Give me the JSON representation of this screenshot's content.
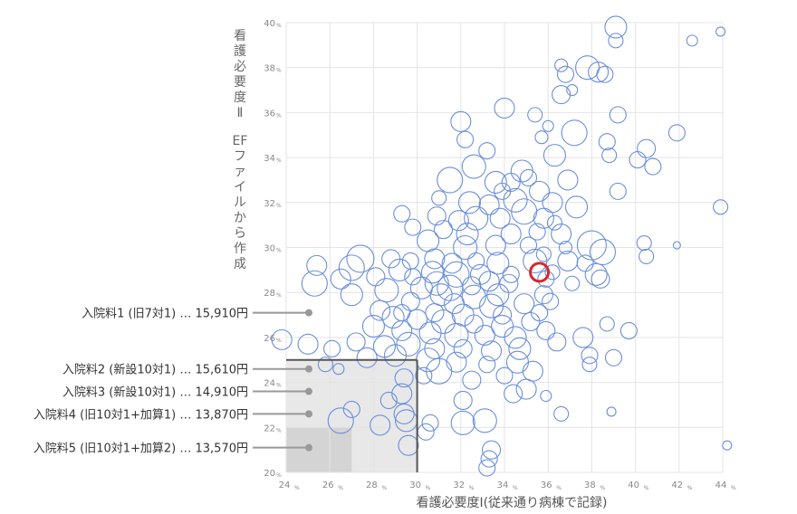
{
  "chart_data": {
    "type": "scatter",
    "subtype": "bubble",
    "xlabel": "看護必要度Ⅰ(従来通り病棟で記録)",
    "ylabel_line1": "看護必要度Ⅱ",
    "ylabel_line2": "EFファイルから作成",
    "xlim": [
      24,
      44
    ],
    "ylim": [
      20,
      40
    ],
    "x_ticks": [
      {
        "v": 24,
        "t": "24"
      },
      {
        "v": 26,
        "t": "26"
      },
      {
        "v": 28,
        "t": "28"
      },
      {
        "v": 30,
        "t": "30"
      },
      {
        "v": 32,
        "t": "32"
      },
      {
        "v": 34,
        "t": "34"
      },
      {
        "v": 36,
        "t": "36"
      },
      {
        "v": 38,
        "t": "38"
      },
      {
        "v": 40,
        "t": "40"
      },
      {
        "v": 42,
        "t": "42"
      },
      {
        "v": 44,
        "t": "44"
      }
    ],
    "y_ticks": [
      {
        "v": 20,
        "t": "20"
      },
      {
        "v": 22,
        "t": "22"
      },
      {
        "v": 24,
        "t": "24"
      },
      {
        "v": 26,
        "t": "26"
      },
      {
        "v": 28,
        "t": "28"
      },
      {
        "v": 30,
        "t": "30"
      },
      {
        "v": 32,
        "t": "32"
      },
      {
        "v": 34,
        "t": "34"
      },
      {
        "v": 36,
        "t": "36"
      },
      {
        "v": 38,
        "t": "38"
      },
      {
        "v": 40,
        "t": "40"
      }
    ],
    "tick_unit": "%",
    "grid": true,
    "colors": {
      "bubble": "#6a8fdb",
      "highlight": "#d9262a",
      "grid": "#e4e4e4",
      "box_line": "#555555",
      "label": "#333333",
      "marker": "#999999",
      "shade_light": "#e8e8e8",
      "shade_dark": "#d4d4d4"
    },
    "shaded_regions": [
      {
        "x": [
          24,
          30
        ],
        "y": [
          20,
          25
        ]
      },
      {
        "x": [
          24,
          27
        ],
        "y": [
          20,
          22
        ]
      }
    ],
    "reference_lines": [
      {
        "label": "入院料1 (旧7対1) … 15,910円",
        "y": 27.1
      },
      {
        "label": "入院料2 (新設10対1) … 15,610円",
        "y": 24.6
      },
      {
        "label": "入院料3 (新設10対1) … 14,910円",
        "y": 23.6
      },
      {
        "label": "入院料4 (旧10対1+加算1) … 13,870円",
        "y": 22.6
      },
      {
        "label": "入院料5 (旧10対1+加算2) … 13,570円",
        "y": 21.1
      }
    ],
    "highlight": {
      "x": 35.6,
      "y": 28.9,
      "size": 10
    },
    "bubbles": [
      [
        39.1,
        39.8,
        12
      ],
      [
        39.1,
        39.2,
        8
      ],
      [
        42.6,
        39.2,
        6
      ],
      [
        43.9,
        39.6,
        5
      ],
      [
        36.6,
        38.1,
        7
      ],
      [
        37.8,
        38.0,
        13
      ],
      [
        38.3,
        37.8,
        11
      ],
      [
        38.6,
        37.7,
        9
      ],
      [
        36.8,
        37.7,
        9
      ],
      [
        36.6,
        36.8,
        10
      ],
      [
        37.1,
        37.0,
        6
      ],
      [
        34.0,
        36.2,
        11
      ],
      [
        35.4,
        35.9,
        8
      ],
      [
        36.0,
        35.4,
        6
      ],
      [
        39.2,
        35.9,
        9
      ],
      [
        32.0,
        35.6,
        11
      ],
      [
        37.2,
        35.1,
        14
      ],
      [
        32.2,
        34.8,
        9
      ],
      [
        38.7,
        34.7,
        9
      ],
      [
        41.9,
        35.1,
        9
      ],
      [
        35.7,
        34.9,
        7
      ],
      [
        33.2,
        34.3,
        9
      ],
      [
        36.3,
        34.1,
        12
      ],
      [
        38.8,
        34.1,
        8
      ],
      [
        40.5,
        34.4,
        10
      ],
      [
        40.1,
        33.9,
        9
      ],
      [
        40.8,
        33.6,
        9
      ],
      [
        32.6,
        33.6,
        13
      ],
      [
        31.5,
        33.0,
        14
      ],
      [
        34.8,
        33.4,
        12
      ],
      [
        35.1,
        33.1,
        9
      ],
      [
        36.9,
        33.0,
        11
      ],
      [
        34.3,
        32.9,
        10
      ],
      [
        33.6,
        32.9,
        12
      ],
      [
        33.9,
        32.5,
        9
      ],
      [
        35.6,
        32.5,
        11
      ],
      [
        32.4,
        32.0,
        12
      ],
      [
        31.0,
        32.2,
        8
      ],
      [
        33.3,
        31.9,
        11
      ],
      [
        34.5,
        32.1,
        13
      ],
      [
        36.2,
        32.0,
        11
      ],
      [
        37.3,
        31.8,
        12
      ],
      [
        39.2,
        32.5,
        9
      ],
      [
        43.9,
        31.8,
        8
      ],
      [
        29.3,
        31.5,
        9
      ],
      [
        30.9,
        31.4,
        10
      ],
      [
        31.9,
        31.2,
        11
      ],
      [
        32.7,
        31.3,
        13
      ],
      [
        33.8,
        31.3,
        11
      ],
      [
        34.9,
        31.6,
        14
      ],
      [
        35.8,
        31.3,
        11
      ],
      [
        36.3,
        31.1,
        8
      ],
      [
        29.8,
        30.9,
        9
      ],
      [
        31.2,
        30.8,
        10
      ],
      [
        32.3,
        30.6,
        12
      ],
      [
        34.3,
        30.6,
        11
      ],
      [
        35.5,
        30.7,
        9
      ],
      [
        36.6,
        30.6,
        11
      ],
      [
        38.0,
        30.1,
        16
      ],
      [
        40.4,
        30.2,
        8
      ],
      [
        41.9,
        30.1,
        4
      ],
      [
        30.5,
        30.3,
        12
      ],
      [
        32.2,
        30.0,
        13
      ],
      [
        33.6,
        30.1,
        11
      ],
      [
        35.1,
        30.1,
        9
      ],
      [
        35.8,
        29.7,
        8
      ],
      [
        36.8,
        30.0,
        7
      ],
      [
        38.5,
        29.8,
        14
      ],
      [
        40.5,
        29.6,
        8
      ],
      [
        27.4,
        29.5,
        15
      ],
      [
        28.8,
        29.5,
        10
      ],
      [
        29.7,
        29.4,
        9
      ],
      [
        30.8,
        29.5,
        11
      ],
      [
        31.6,
        29.3,
        11
      ],
      [
        32.7,
        29.4,
        9
      ],
      [
        33.7,
        29.3,
        12
      ],
      [
        35.4,
        29.4,
        13
      ],
      [
        36.9,
        29.4,
        11
      ],
      [
        37.7,
        29.3,
        9
      ],
      [
        25.4,
        29.2,
        11
      ],
      [
        27.0,
        29.1,
        14
      ],
      [
        29.2,
        29.0,
        12
      ],
      [
        30.7,
        28.9,
        12
      ],
      [
        31.8,
        28.8,
        14
      ],
      [
        32.9,
        28.8,
        11
      ],
      [
        34.3,
        28.8,
        9
      ],
      [
        36.2,
        28.9,
        8
      ],
      [
        38.2,
        28.8,
        12
      ],
      [
        28.1,
        28.7,
        10
      ],
      [
        29.8,
        28.7,
        9
      ],
      [
        30.9,
        28.4,
        13
      ],
      [
        31.5,
        28.2,
        14
      ],
      [
        32.5,
        28.3,
        10
      ],
      [
        33.3,
        28.5,
        11
      ],
      [
        34.2,
        28.4,
        10
      ],
      [
        35.9,
        28.6,
        9
      ],
      [
        37.1,
        28.4,
        8
      ],
      [
        38.4,
        28.6,
        10
      ],
      [
        25.3,
        28.4,
        14
      ],
      [
        26.5,
        28.6,
        11
      ],
      [
        28.6,
        28.1,
        13
      ],
      [
        30.2,
        28.2,
        12
      ],
      [
        31.1,
        27.9,
        12
      ],
      [
        32.6,
        27.8,
        13
      ],
      [
        33.7,
        27.9,
        12
      ],
      [
        35.8,
        27.9,
        10
      ],
      [
        27.0,
        27.9,
        12
      ],
      [
        29.7,
        27.6,
        10
      ],
      [
        31.7,
        27.5,
        11
      ],
      [
        33.4,
        27.4,
        13
      ],
      [
        34.9,
        27.5,
        11
      ],
      [
        36.1,
        27.6,
        9
      ],
      [
        28.3,
        27.2,
        11
      ],
      [
        29.3,
        27.1,
        9
      ],
      [
        30.8,
        27.1,
        10
      ],
      [
        32.1,
        27.0,
        12
      ],
      [
        33.9,
        27.0,
        10
      ],
      [
        35.6,
        27.1,
        9
      ],
      [
        28.9,
        26.9,
        12
      ],
      [
        30.0,
        26.8,
        11
      ],
      [
        31.2,
        26.7,
        13
      ],
      [
        32.6,
        26.6,
        10
      ],
      [
        33.9,
        26.5,
        12
      ],
      [
        35.2,
        26.7,
        10
      ],
      [
        38.7,
        26.6,
        8
      ],
      [
        39.7,
        26.3,
        9
      ],
      [
        28.0,
        26.5,
        12
      ],
      [
        29.3,
        26.3,
        11
      ],
      [
        30.6,
        26.2,
        12
      ],
      [
        31.8,
        26.1,
        13
      ],
      [
        33.1,
        26.1,
        11
      ],
      [
        34.5,
        26.0,
        12
      ],
      [
        35.9,
        26.3,
        10
      ],
      [
        37.6,
        26.0,
        11
      ],
      [
        27.2,
        25.8,
        10
      ],
      [
        28.5,
        25.6,
        12
      ],
      [
        29.6,
        25.7,
        13
      ],
      [
        30.8,
        25.5,
        11
      ],
      [
        32.1,
        25.5,
        10
      ],
      [
        33.4,
        25.4,
        11
      ],
      [
        34.7,
        25.5,
        12
      ],
      [
        36.4,
        25.8,
        10
      ],
      [
        25.0,
        25.7,
        11
      ],
      [
        26.1,
        25.5,
        9
      ],
      [
        27.7,
        25.1,
        11
      ],
      [
        29.0,
        25.2,
        12
      ],
      [
        30.5,
        25.0,
        13
      ],
      [
        31.8,
        24.9,
        11
      ],
      [
        33.2,
        24.8,
        9
      ],
      [
        34.6,
        24.9,
        12
      ],
      [
        37.9,
        25.2,
        9
      ],
      [
        39.0,
        25.1,
        9
      ],
      [
        23.8,
        25.9,
        11
      ],
      [
        25.8,
        24.8,
        8
      ],
      [
        26.4,
        24.6,
        6
      ],
      [
        31.0,
        24.5,
        14
      ],
      [
        32.5,
        24.1,
        10
      ],
      [
        34.0,
        24.3,
        9
      ],
      [
        35.3,
        24.5,
        11
      ],
      [
        37.9,
        24.8,
        8
      ],
      [
        29.4,
        24.2,
        10
      ],
      [
        30.3,
        24.3,
        9
      ],
      [
        35.0,
        23.7,
        11
      ],
      [
        34.4,
        23.5,
        10
      ],
      [
        35.9,
        23.4,
        6
      ],
      [
        28.7,
        23.2,
        9
      ],
      [
        29.3,
        23.5,
        11
      ],
      [
        32.1,
        23.2,
        10
      ],
      [
        27.0,
        22.8,
        9
      ],
      [
        29.4,
        22.6,
        11
      ],
      [
        30.6,
        22.2,
        9
      ],
      [
        32.1,
        22.2,
        13
      ],
      [
        33.1,
        22.3,
        13
      ],
      [
        36.6,
        22.6,
        8
      ],
      [
        38.9,
        22.7,
        5
      ],
      [
        26.5,
        22.3,
        14
      ],
      [
        28.3,
        22.1,
        11
      ],
      [
        29.5,
        22.3,
        12
      ],
      [
        30.4,
        21.8,
        9
      ],
      [
        29.6,
        21.2,
        11
      ],
      [
        33.4,
        21.0,
        10
      ],
      [
        44.2,
        21.2,
        5
      ],
      [
        33.3,
        20.6,
        9
      ],
      [
        33.2,
        20.2,
        9
      ]
    ]
  }
}
